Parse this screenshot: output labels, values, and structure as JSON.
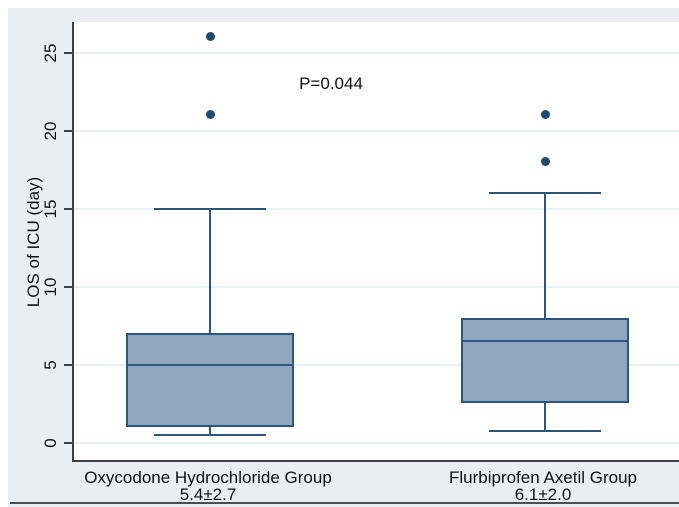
{
  "chart_data": {
    "type": "box",
    "title": "",
    "xlabel": "",
    "ylabel": "LOS of ICU (day)",
    "ylim": [
      0,
      27
    ],
    "yticks": [
      0,
      5,
      10,
      15,
      20,
      25
    ],
    "grid": "horizontal",
    "legend": "none",
    "annotation": "P=0.044",
    "categories": [
      "Oxycodone Hydrochloride Group",
      "Flurbiprofen Axetil Group"
    ],
    "series": [
      {
        "name": "Oxycodone Hydrochloride Group",
        "mean_sd_label": "5.4±2.7",
        "whisker_low": 0.5,
        "q1": 1,
        "median": 5,
        "q3": 7,
        "whisker_high": 15,
        "outliers": [
          21,
          26
        ]
      },
      {
        "name": "Flurbiprofen Axetil Group",
        "mean_sd_label": "6.1±2.0",
        "whisker_low": 0.75,
        "q1": 2.5,
        "median": 6.5,
        "q3": 8,
        "whisker_high": 16,
        "outliers": [
          18,
          21
        ]
      }
    ],
    "colors": {
      "figure_bg": "#e8eef2",
      "plot_bg": "#ffffff",
      "grid": "#e9f0f4",
      "axis": "#3f3f3f",
      "box_fill": "#8fa6bf",
      "box_border": "#2a567f",
      "outlier": "#1f4a70",
      "text": "#111111",
      "bottom_rule": "#4d4d4d"
    }
  }
}
